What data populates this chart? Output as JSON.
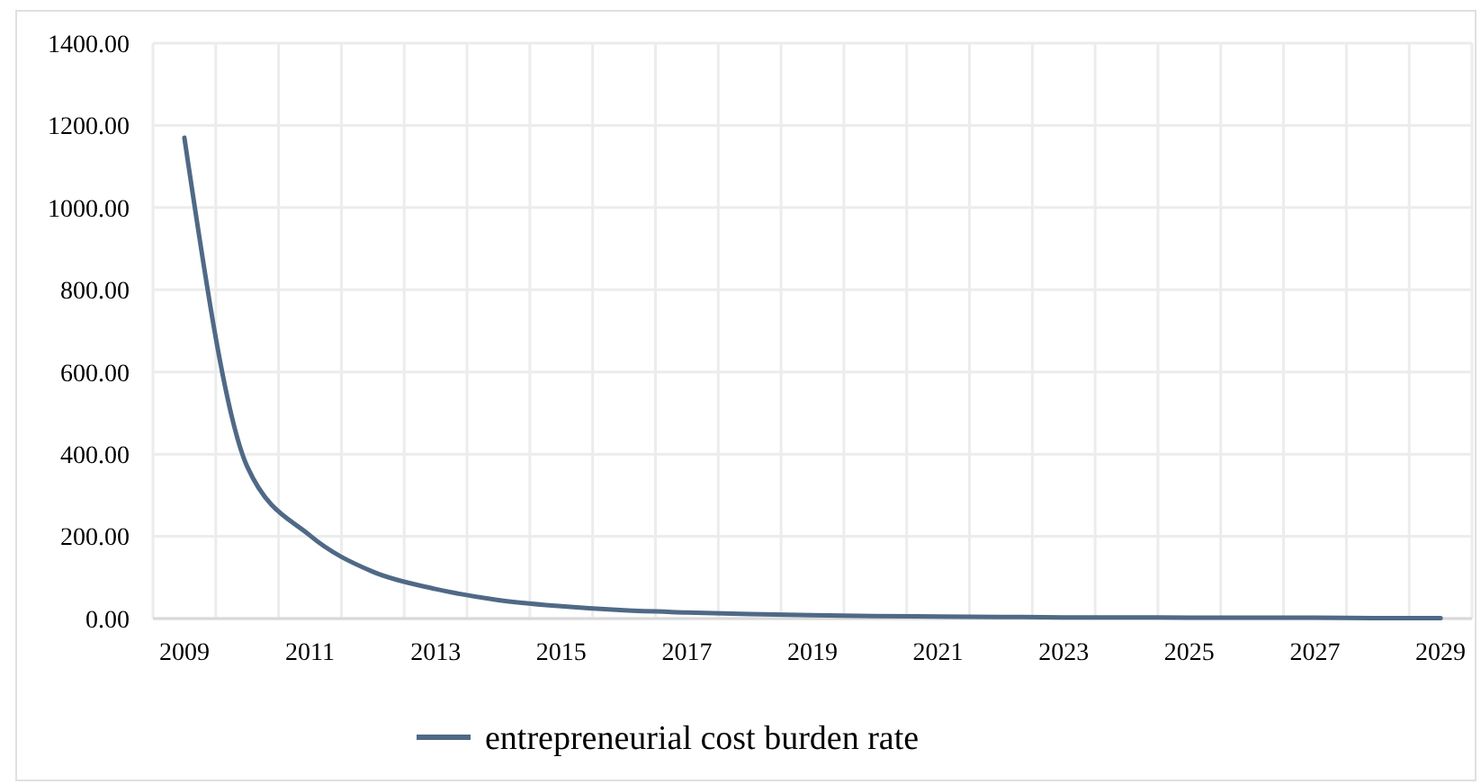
{
  "chart_data": {
    "type": "line",
    "categories": [
      "2009",
      null,
      "2011",
      null,
      "2013",
      null,
      "2015",
      null,
      "2017",
      null,
      "2019",
      null,
      "2021",
      null,
      "2023",
      null,
      "2025",
      null,
      "2027",
      null,
      "2029"
    ],
    "series": [
      {
        "name": "entrepreneurial cost burden rate",
        "color": "#4f6986",
        "values": [
          1170,
          370,
          202,
          114,
          72,
          45,
          30,
          20,
          15,
          11,
          8,
          6,
          5,
          4,
          3,
          3,
          2,
          2,
          2,
          1,
          1
        ]
      }
    ],
    "ylim": [
      0,
      1400
    ],
    "yticks": [
      {
        "value": 0,
        "label": "0.00"
      },
      {
        "value": 200,
        "label": "200.00"
      },
      {
        "value": 400,
        "label": "400.00"
      },
      {
        "value": 600,
        "label": "600.00"
      },
      {
        "value": 800,
        "label": "800.00"
      },
      {
        "value": 1000,
        "label": "1000.00"
      },
      {
        "value": 1200,
        "label": "1200.00"
      },
      {
        "value": 1400,
        "label": "1400.00"
      }
    ],
    "grid": true,
    "legend": "bottom",
    "marker": "none",
    "line_style": "solid"
  }
}
